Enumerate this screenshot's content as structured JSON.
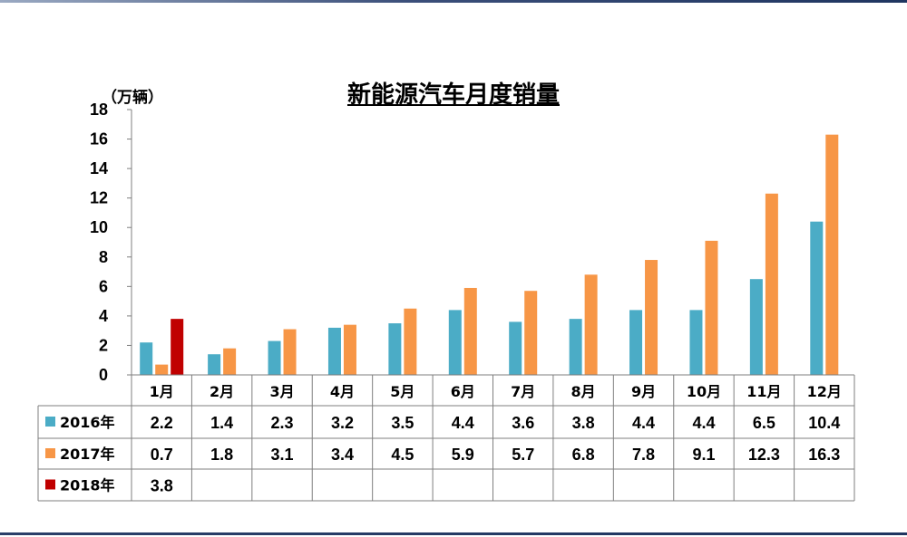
{
  "chart_data": {
    "type": "bar",
    "title": "新能源汽车月度销量",
    "unit": "（万辆）",
    "ylim": [
      0,
      18
    ],
    "yticks": [
      "0",
      "2",
      "4",
      "6",
      "8",
      "10",
      "12",
      "14",
      "16",
      "18"
    ],
    "categories": [
      "1月",
      "2月",
      "3月",
      "4月",
      "5月",
      "6月",
      "7月",
      "8月",
      "9月",
      "10月",
      "11月",
      "12月"
    ],
    "series": [
      {
        "name": "2016年",
        "color": "#4bacc6",
        "values": [
          2.2,
          1.4,
          2.3,
          3.2,
          3.5,
          4.4,
          3.6,
          3.8,
          4.4,
          4.4,
          6.5,
          10.4
        ],
        "labels": [
          "2.2",
          "1.4",
          "2.3",
          "3.2",
          "3.5",
          "4.4",
          "3.6",
          "3.8",
          "4.4",
          "4.4",
          "6.5",
          "10.4"
        ]
      },
      {
        "name": "2017年",
        "color": "#f79646",
        "values": [
          0.7,
          1.8,
          3.1,
          3.4,
          4.5,
          5.9,
          5.7,
          6.8,
          7.8,
          9.1,
          12.3,
          16.3
        ],
        "labels": [
          "0.7",
          "1.8",
          "3.1",
          "3.4",
          "4.5",
          "5.9",
          "5.7",
          "6.8",
          "7.8",
          "9.1",
          "12.3",
          "16.3"
        ]
      },
      {
        "name": "2018年",
        "color": "#c00000",
        "values": [
          3.8,
          null,
          null,
          null,
          null,
          null,
          null,
          null,
          null,
          null,
          null,
          null
        ],
        "labels": [
          "3.8",
          "",
          "",
          "",
          "",
          "",
          "",
          "",
          "",
          "",
          "",
          ""
        ]
      }
    ],
    "legend": "data-table",
    "grid": false
  }
}
